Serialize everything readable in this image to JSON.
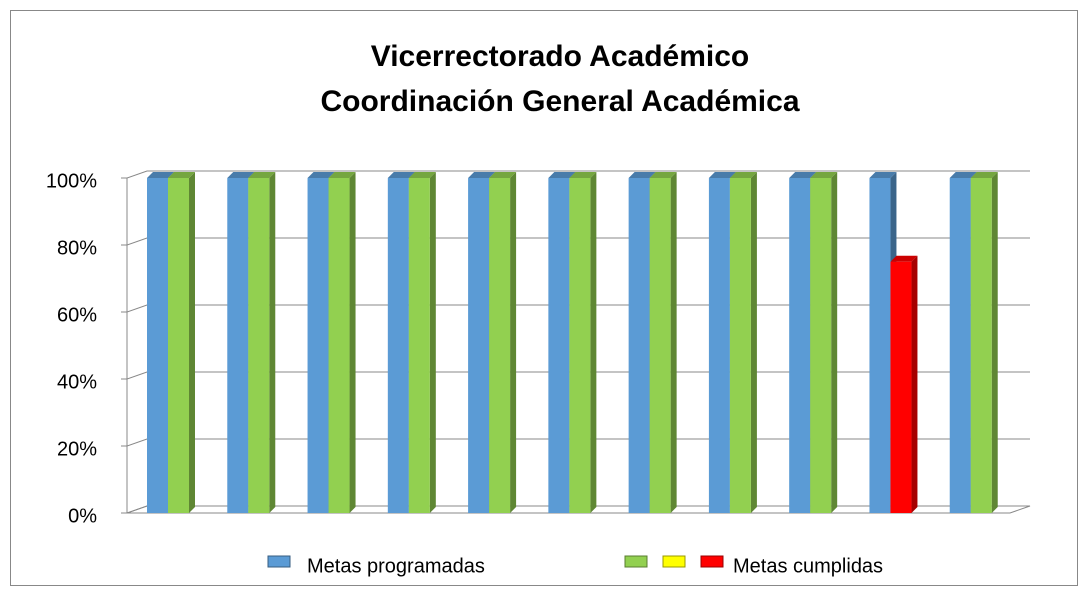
{
  "chart_data": {
    "type": "bar3d",
    "title": [
      "Vicerrectorado Académico",
      "Coordinación General Académica"
    ],
    "categories": [
      null,
      null,
      null,
      null,
      null,
      null,
      null,
      null,
      null,
      null,
      null
    ],
    "series": [
      {
        "name": "Metas programadas",
        "color": "#5b9bd5",
        "values": [
          100,
          100,
          100,
          100,
          100,
          100,
          100,
          100,
          100,
          100,
          100
        ]
      },
      {
        "name": "Metas cumplidas",
        "color": "#92d050",
        "colors": [
          "#92d050",
          "#92d050",
          "#92d050",
          "#92d050",
          "#92d050",
          "#92d050",
          "#92d050",
          "#92d050",
          "#92d050",
          "#ff0000",
          "#92d050"
        ],
        "legend_colors": [
          "#92d050",
          "#ffff00",
          "#ff0000"
        ],
        "values": [
          100,
          100,
          100,
          100,
          100,
          100,
          100,
          100,
          100,
          75,
          100
        ]
      }
    ],
    "ylim": [
      0,
      100
    ],
    "yticks": [
      {
        "value": 0,
        "label": "0%"
      },
      {
        "value": 20,
        "label": "20%"
      },
      {
        "value": 40,
        "label": "40%"
      },
      {
        "value": 60,
        "label": "60%"
      },
      {
        "value": 80,
        "label": "80%"
      },
      {
        "value": 100,
        "label": "100%"
      }
    ],
    "grid": true,
    "legend": "bottom"
  }
}
